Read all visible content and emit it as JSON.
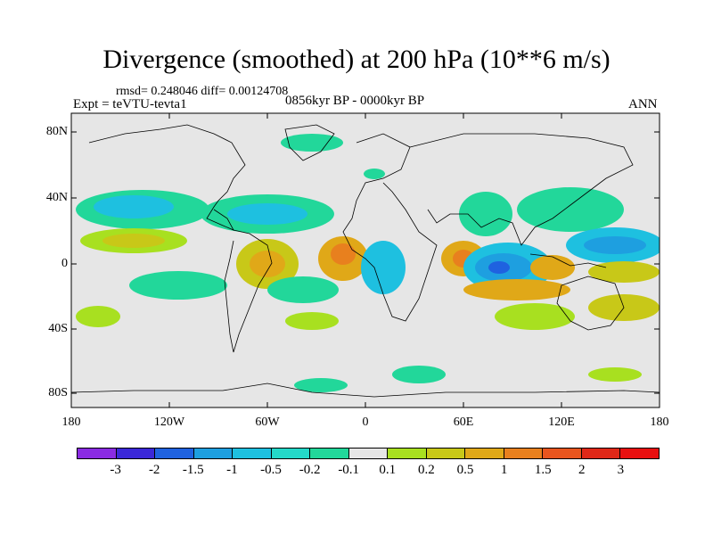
{
  "title": "Divergence (smoothed) at 200 hPa (10**6 m/s)",
  "stats": "rmsd= 0.248046 diff= 0.00124708",
  "experiment": "Expt = teVTU-tevta1",
  "period": "0856kyr BP - 0000kyr BP",
  "season": "ANN",
  "axes": {
    "lat_labels": [
      "80N",
      "40N",
      "0",
      "40S",
      "80S"
    ],
    "lon_labels": [
      "180",
      "120W",
      "60W",
      "0",
      "60E",
      "120E",
      "180"
    ]
  },
  "colorbar": {
    "labels": [
      "-3",
      "-2",
      "-1.5",
      "-1",
      "-0.5",
      "-0.2",
      "-0.1",
      "0.1",
      "0.2",
      "0.5",
      "1",
      "1.5",
      "2",
      "3"
    ],
    "colors": [
      "#8a2be2",
      "#3b28d8",
      "#1f62e0",
      "#1e9fe0",
      "#1ec0e0",
      "#24d8c8",
      "#22d79a",
      "#e6e6e6",
      "#a8e020",
      "#c8c818",
      "#e0a818",
      "#e8801e",
      "#e8551e",
      "#e02818",
      "#e81010"
    ]
  },
  "map_colors": {
    "land_bg": "#e6e6e6",
    "coast": "#000000"
  }
}
